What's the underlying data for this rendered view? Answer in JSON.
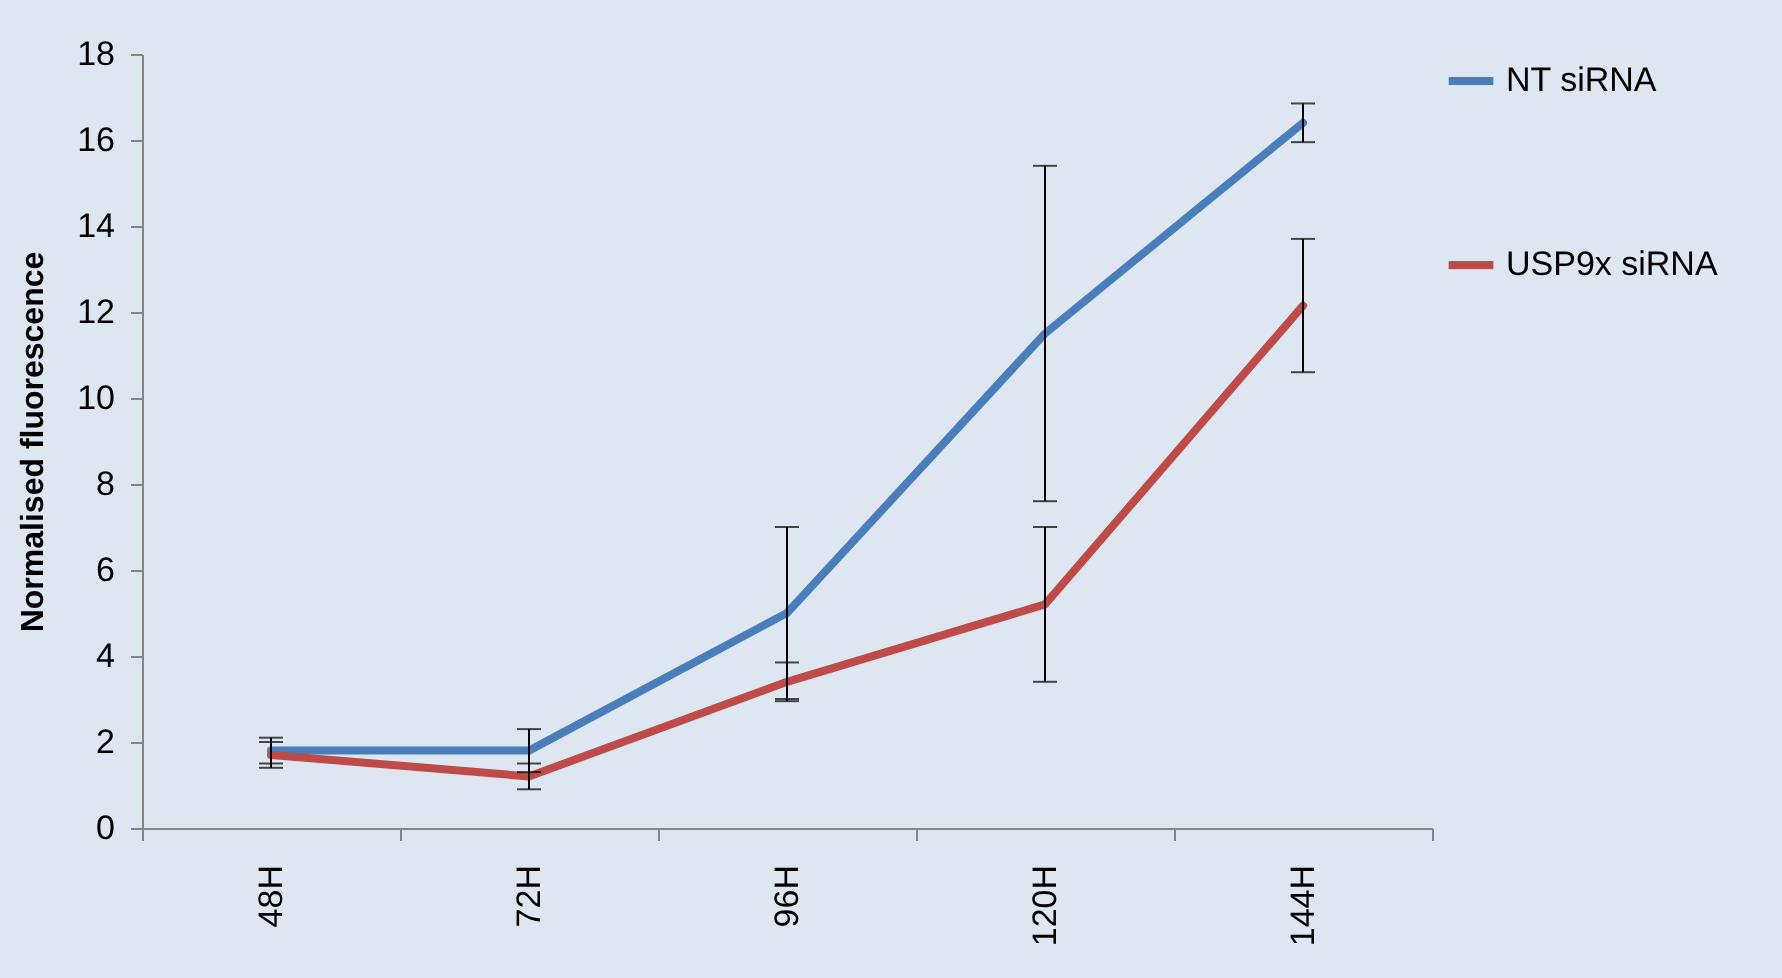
{
  "chart_data": {
    "type": "line",
    "ylabel": "Normalised fluorescence",
    "categories": [
      "48H",
      "72H",
      "96H",
      "120H",
      "144H"
    ],
    "series": [
      {
        "name": "NT siRNA",
        "color": "#4a7ebb",
        "values": [
          1.8,
          1.8,
          5.0,
          11.5,
          16.4
        ],
        "errors": [
          0.3,
          0.5,
          2.0,
          3.9,
          0.45
        ]
      },
      {
        "name": "USP9x siRNA",
        "color": "#be4b48",
        "values": [
          1.7,
          1.2,
          3.4,
          5.2,
          12.15
        ],
        "errors": [
          0.3,
          0.3,
          0.45,
          1.8,
          1.55
        ]
      }
    ],
    "ylim": [
      0,
      18
    ],
    "yticks": [
      0,
      2,
      4,
      6,
      8,
      10,
      12,
      14,
      16,
      18
    ],
    "grid": false,
    "legend": "right",
    "marker": "none",
    "line_style": "solid"
  }
}
